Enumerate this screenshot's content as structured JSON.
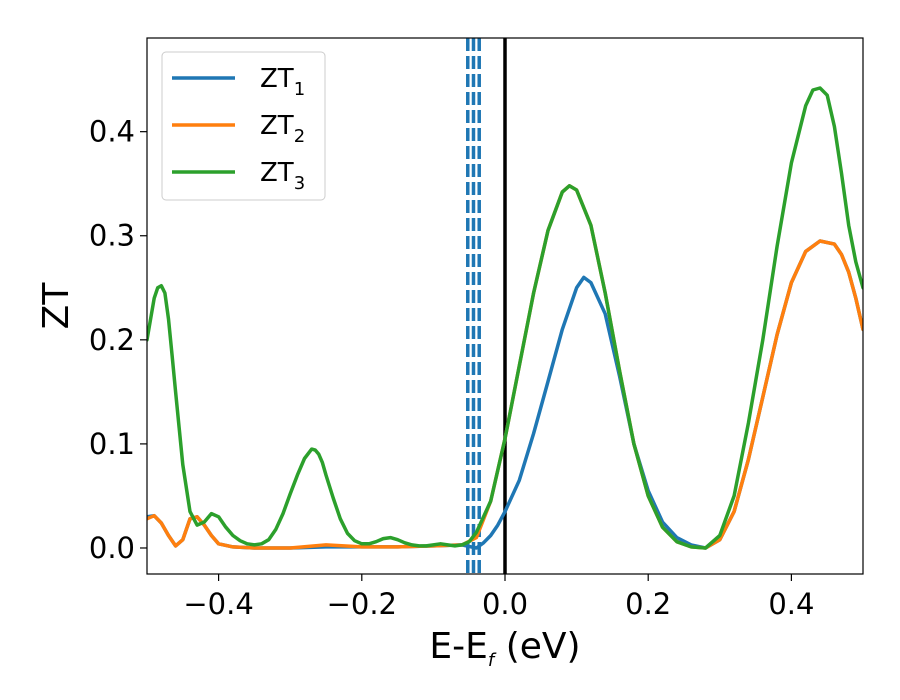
{
  "chart_data": {
    "type": "line",
    "xlabel": "E-E",
    "xlabel_sub": "f",
    "xlabel_unit": " (eV)",
    "ylabel": "ZT",
    "xlim": [
      -0.5,
      0.5
    ],
    "ylim": [
      -0.025,
      0.49
    ],
    "x_ticks": [
      -0.4,
      -0.2,
      0.0,
      0.2,
      0.4
    ],
    "x_tick_labels": [
      "−0.4",
      "−0.2",
      "0.0",
      "0.2",
      "0.4"
    ],
    "y_ticks": [
      0.0,
      0.1,
      0.2,
      0.3,
      0.4
    ],
    "y_tick_labels": [
      "0.0",
      "0.1",
      "0.2",
      "0.3",
      "0.4"
    ],
    "grid": false,
    "legend_position": "top-left",
    "series": [
      {
        "name": "ZT",
        "name_sub": "1",
        "color": "#1f77b4",
        "x": [
          -0.5,
          -0.49,
          -0.48,
          -0.47,
          -0.46,
          -0.45,
          -0.44,
          -0.43,
          -0.42,
          -0.41,
          -0.4,
          -0.38,
          -0.35,
          -0.3,
          -0.25,
          -0.2,
          -0.15,
          -0.1,
          -0.06,
          -0.04,
          -0.03,
          -0.02,
          -0.01,
          0.0,
          0.02,
          0.04,
          0.06,
          0.08,
          0.1,
          0.11,
          0.12,
          0.14,
          0.16,
          0.18,
          0.2,
          0.22,
          0.24,
          0.26,
          0.28,
          0.3,
          0.32,
          0.34,
          0.36,
          0.38,
          0.4,
          0.42,
          0.44,
          0.46,
          0.47,
          0.48,
          0.49,
          0.5
        ],
        "y": [
          0.03,
          0.031,
          0.024,
          0.012,
          0.002,
          0.008,
          0.028,
          0.03,
          0.022,
          0.012,
          0.004,
          0.001,
          0.0,
          0.0,
          0.001,
          0.001,
          0.001,
          0.002,
          0.003,
          0.0,
          0.005,
          0.012,
          0.022,
          0.035,
          0.065,
          0.11,
          0.16,
          0.21,
          0.25,
          0.26,
          0.255,
          0.225,
          0.165,
          0.1,
          0.055,
          0.025,
          0.01,
          0.003,
          0.0,
          0.008,
          0.035,
          0.085,
          0.145,
          0.205,
          0.255,
          0.285,
          0.295,
          0.292,
          0.282,
          0.265,
          0.24,
          0.21
        ]
      },
      {
        "name": "ZT",
        "name_sub": "2",
        "color": "#ff7f0e",
        "x": [
          -0.5,
          -0.49,
          -0.48,
          -0.47,
          -0.46,
          -0.45,
          -0.44,
          -0.43,
          -0.42,
          -0.41,
          -0.4,
          -0.38,
          -0.35,
          -0.3,
          -0.25,
          -0.2,
          -0.15,
          -0.1,
          -0.06,
          -0.04,
          -0.02,
          0.0,
          0.02,
          0.04,
          0.06,
          0.08,
          0.09,
          0.1,
          0.12,
          0.14,
          0.16,
          0.18,
          0.2,
          0.22,
          0.24,
          0.26,
          0.28,
          0.3,
          0.32,
          0.34,
          0.36,
          0.38,
          0.4,
          0.42,
          0.44,
          0.46,
          0.47,
          0.48,
          0.49,
          0.5
        ],
        "y": [
          0.028,
          0.031,
          0.024,
          0.012,
          0.002,
          0.008,
          0.028,
          0.03,
          0.022,
          0.012,
          0.004,
          0.001,
          0.0,
          0.0,
          0.003,
          0.001,
          0.001,
          0.002,
          0.003,
          0.01,
          0.045,
          0.105,
          0.175,
          0.245,
          0.305,
          0.342,
          0.348,
          0.344,
          0.31,
          0.245,
          0.17,
          0.1,
          0.05,
          0.02,
          0.006,
          0.001,
          0.0,
          0.008,
          0.035,
          0.085,
          0.145,
          0.205,
          0.255,
          0.285,
          0.295,
          0.292,
          0.282,
          0.265,
          0.24,
          0.21
        ]
      },
      {
        "name": "ZT",
        "name_sub": "3",
        "color": "#2ca02c",
        "x": [
          -0.5,
          -0.495,
          -0.49,
          -0.485,
          -0.48,
          -0.475,
          -0.47,
          -0.465,
          -0.46,
          -0.455,
          -0.45,
          -0.44,
          -0.43,
          -0.42,
          -0.41,
          -0.4,
          -0.39,
          -0.38,
          -0.37,
          -0.36,
          -0.35,
          -0.34,
          -0.33,
          -0.32,
          -0.31,
          -0.3,
          -0.29,
          -0.28,
          -0.27,
          -0.265,
          -0.26,
          -0.255,
          -0.25,
          -0.24,
          -0.23,
          -0.22,
          -0.21,
          -0.2,
          -0.19,
          -0.18,
          -0.17,
          -0.16,
          -0.15,
          -0.14,
          -0.13,
          -0.12,
          -0.11,
          -0.1,
          -0.09,
          -0.08,
          -0.07,
          -0.06,
          -0.05,
          -0.04,
          -0.02,
          0.0,
          0.02,
          0.04,
          0.06,
          0.08,
          0.09,
          0.1,
          0.12,
          0.14,
          0.16,
          0.18,
          0.2,
          0.22,
          0.24,
          0.26,
          0.28,
          0.3,
          0.32,
          0.34,
          0.36,
          0.38,
          0.4,
          0.42,
          0.43,
          0.44,
          0.45,
          0.46,
          0.47,
          0.48,
          0.49,
          0.5
        ],
        "y": [
          0.2,
          0.22,
          0.24,
          0.25,
          0.252,
          0.245,
          0.22,
          0.185,
          0.15,
          0.115,
          0.08,
          0.035,
          0.022,
          0.025,
          0.033,
          0.03,
          0.02,
          0.012,
          0.007,
          0.004,
          0.003,
          0.004,
          0.008,
          0.018,
          0.033,
          0.052,
          0.07,
          0.086,
          0.095,
          0.094,
          0.09,
          0.082,
          0.07,
          0.048,
          0.028,
          0.014,
          0.007,
          0.004,
          0.004,
          0.006,
          0.009,
          0.01,
          0.008,
          0.005,
          0.003,
          0.002,
          0.002,
          0.003,
          0.004,
          0.003,
          0.002,
          0.003,
          0.006,
          0.015,
          0.045,
          0.105,
          0.175,
          0.245,
          0.305,
          0.342,
          0.348,
          0.344,
          0.31,
          0.245,
          0.17,
          0.1,
          0.05,
          0.02,
          0.006,
          0.001,
          0.0,
          0.012,
          0.05,
          0.12,
          0.2,
          0.29,
          0.37,
          0.425,
          0.44,
          0.442,
          0.435,
          0.405,
          0.36,
          0.31,
          0.275,
          0.25
        ]
      }
    ],
    "vertical_lines": [
      {
        "x": 0.0,
        "style": "solid",
        "color": "#000000"
      },
      {
        "x": -0.052,
        "style": "dashed",
        "color": "#1f77b4"
      },
      {
        "x": -0.044,
        "style": "dashed",
        "color": "#1f77b4"
      },
      {
        "x": -0.036,
        "style": "dashed",
        "color": "#1f77b4"
      }
    ]
  }
}
